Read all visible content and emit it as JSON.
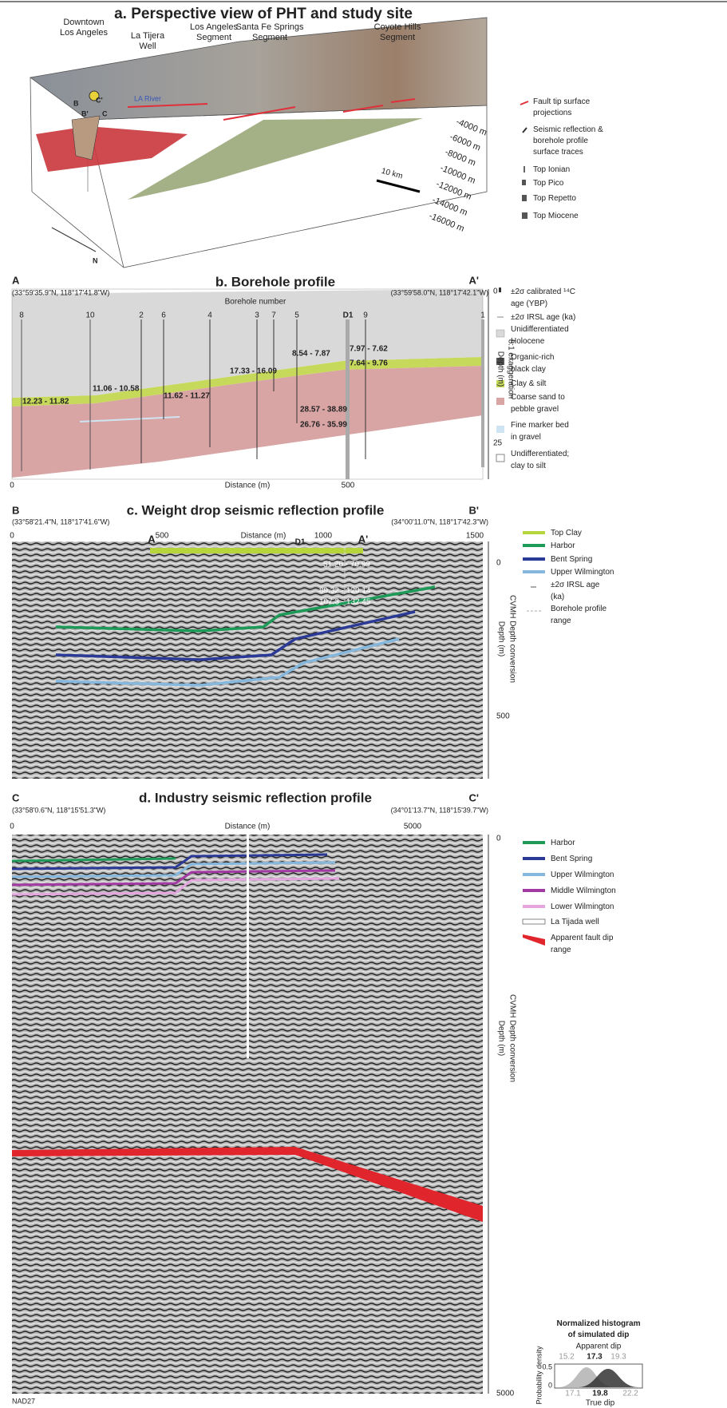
{
  "panel_a": {
    "title": "a. Perspective view of PHT and study site",
    "labels": {
      "downtown": [
        "Downtown",
        "Los Angeles"
      ],
      "well": [
        "La Tijera",
        "Well"
      ],
      "la_segment": [
        "Los Angeles",
        "Segment"
      ],
      "sfs_segment": [
        "Santa Fe Springs",
        "Segment"
      ],
      "ch_segment": [
        "Coyote Hills",
        "Segment"
      ],
      "river": "LA River",
      "b": "B",
      "b_prime": "B'",
      "c": "C",
      "c_prime": "C'"
    },
    "depth_labels": [
      "-4000 m",
      "-6000 m",
      "-8000 m",
      "-10000 m",
      "-12000 m",
      "-14000 m",
      "-16000 m"
    ],
    "scale_bar": "10 km",
    "north": "N",
    "legend": [
      [
        "Fault tip surface",
        "projections"
      ],
      [
        "Seismic reflection &",
        "borehole profile",
        "surface traces"
      ],
      [
        "Top Ionian"
      ],
      [
        "Top Pico"
      ],
      [
        "Top Repetto"
      ],
      [
        "Top Miocene"
      ]
    ]
  },
  "panel_b": {
    "title": "b. Borehole profile",
    "start": "A",
    "end": "A'",
    "start_coords": "(33°59'35.9\"N, 118°17'41.8\"W)",
    "end_coords": "(33°59'58.0\"N, 118°17'42.1\"W)",
    "borehole_axis": "Borehole number",
    "boreholes": [
      "8",
      "10",
      "2",
      "6",
      "4",
      "3",
      "7",
      "5",
      "D1",
      "9",
      "1"
    ],
    "ages": [
      "12.23 - 11.82",
      "11.06 - 10.58",
      "11.62 - 11.27",
      "17.33 - 16.09",
      "8.54 - 7.87",
      "7.97 - 7.62",
      "7.64 - 9.76",
      "28.57 - 38.89",
      "26.76 - 35.99"
    ],
    "x_axis": "Distance (m)",
    "x_ticks": [
      "0",
      "500"
    ],
    "y_axis": "Depth (m)",
    "exaggeration": "8:1 exaggeration",
    "y_ticks": [
      "0",
      "25"
    ],
    "legend": [
      [
        "±2σ calibrated ¹⁴C",
        "age (YBP)"
      ],
      [
        "±2σ IRSL age (ka)"
      ],
      [
        "Unidifferentiated",
        "Holocene"
      ],
      [
        "Organic-rich",
        "black clay"
      ],
      [
        "Clay & silt"
      ],
      [
        "Coarse sand to",
        "pebble gravel"
      ],
      [
        "Fine marker bed",
        "in gravel"
      ],
      [
        "Undifferentiated;",
        "clay to silt"
      ]
    ]
  },
  "panel_c": {
    "title": "c. Weight drop seismic reflection profile",
    "start": "B",
    "end": "B'",
    "start_coords": "(33°58'21.4\"N, 118°17'41.6\"W)",
    "end_coords": "(34°00'11.0\"N, 118°17'42.3\"W)",
    "x_axis": "Distance (m)",
    "x_ticks": [
      "0",
      "500",
      "1000",
      "1500"
    ],
    "profile_start": "A",
    "profile_end": "A'",
    "borehole": "D1",
    "ages": [
      "51.20 - 70.99",
      "89.32 - 120.14",
      "107.3 - 132.45"
    ],
    "y_axis": "Depth (m)",
    "conversion": "CVMH Depth conversion",
    "y_ticks": [
      "0",
      "500"
    ],
    "legend": [
      [
        "Top Clay"
      ],
      [
        "Harbor"
      ],
      [
        "Bent Spring"
      ],
      [
        "Upper Wilmington"
      ],
      [
        "±2σ IRSL age",
        "(ka)"
      ],
      [
        "Borehole profile",
        "range"
      ]
    ]
  },
  "panel_d": {
    "title": "d. Industry seismic reflection profile",
    "start": "C",
    "end": "C'",
    "start_coords": "(33°58'0.6\"N, 118°15'51.3\"W)",
    "end_coords": "(34°01'13.7\"N, 118°15'39.7\"W)",
    "x_axis": "Distance (m)",
    "x_ticks": [
      "0",
      "5000"
    ],
    "y_axis": "Depth (m)",
    "conversion": "CVMH Depth conversion",
    "y_ticks": [
      "0",
      "5000"
    ],
    "datum": "NAD27",
    "legend": [
      [
        "Harbor"
      ],
      [
        "Bent Spring"
      ],
      [
        "Upper Wilmington"
      ],
      [
        "Middle Wilmington"
      ],
      [
        "Lower Wilmington"
      ],
      [
        "La Tijada well"
      ],
      [
        "Apparent fault dip",
        "range"
      ]
    ],
    "histogram": {
      "title": [
        "Normalized histogram",
        "of simulated dip"
      ],
      "top_axis": "Apparent dip",
      "top_ticks": [
        "15.2",
        "17.3",
        "19.3"
      ],
      "y_axis": "Probability density",
      "y_ticks": [
        "0.5",
        "0"
      ],
      "bottom_ticks": [
        "17.1",
        "19.8",
        "22.2"
      ],
      "bottom_axis": "True dip"
    }
  }
}
